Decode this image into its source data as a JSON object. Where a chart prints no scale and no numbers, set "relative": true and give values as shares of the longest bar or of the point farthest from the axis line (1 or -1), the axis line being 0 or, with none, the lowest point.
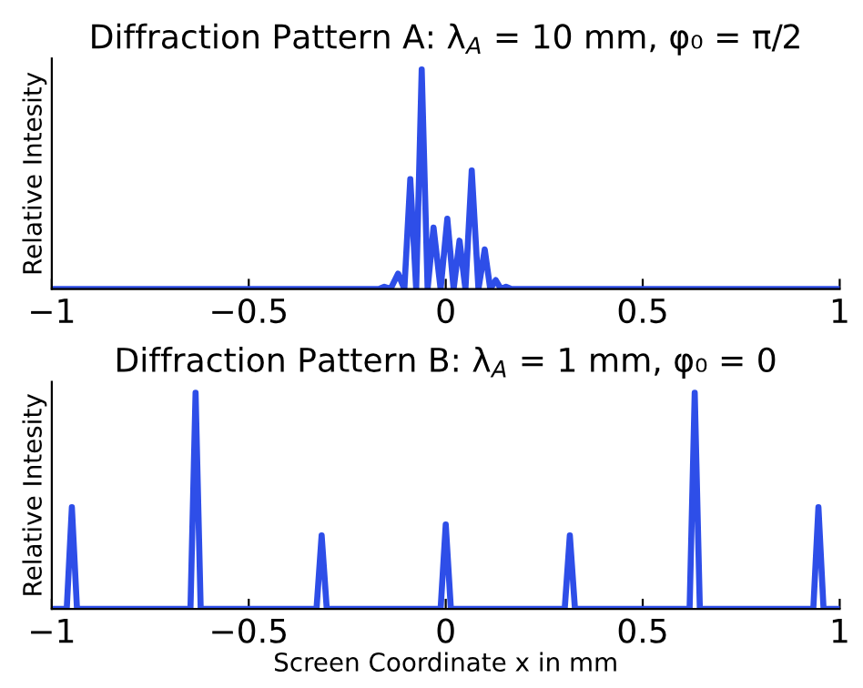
{
  "chart_data": [
    {
      "type": "line",
      "title": "Diffraction Pattern A: λ$_{A}$ = 10 mm, φ₀ = π/2",
      "ylabel": "Relative Intesity",
      "relative": true,
      "xlim": [
        -1,
        1
      ],
      "xticks": [
        -1,
        -0.5,
        0,
        0.5,
        1
      ],
      "grid": false,
      "legend": false,
      "series": [
        {
          "color": "#2e4ee8",
          "x": [
            -1,
            -0.17,
            -0.156,
            -0.14,
            -0.121,
            -0.105,
            -0.09,
            -0.075,
            -0.061,
            -0.046,
            -0.031,
            -0.013,
            0.004,
            0.02,
            0.035,
            0.05,
            0.066,
            0.083,
            0.099,
            0.113,
            0.127,
            0.14,
            0.153,
            0.167,
            1
          ],
          "values": [
            0,
            0,
            0.01,
            0,
            0.07,
            0,
            0.5,
            0,
            1,
            0,
            0.28,
            0,
            0.32,
            0,
            0.22,
            0,
            0.54,
            0,
            0.18,
            0,
            0.04,
            0,
            0.01,
            0,
            0
          ]
        }
      ]
    },
    {
      "type": "line",
      "title": "Diffraction Pattern B: λ$_{A}$ = 1 mm, φ₀ = 0",
      "xlabel": "Screen Coordinate x in mm",
      "ylabel": "Relative Intesity",
      "relative": true,
      "xlim": [
        -1,
        1
      ],
      "xticks": [
        -1,
        -0.5,
        0,
        0.5,
        1
      ],
      "grid": false,
      "legend": false,
      "series": [
        {
          "color": "#2e4ee8",
          "x": [
            -1,
            -0.962,
            -0.949,
            -0.936,
            -0.648,
            -0.635,
            -0.622,
            -0.328,
            -0.315,
            -0.302,
            -0.013,
            0,
            0.013,
            0.302,
            0.315,
            0.328,
            0.619,
            0.632,
            0.645,
            0.933,
            0.946,
            0.959,
            1
          ],
          "values": [
            0,
            0,
            0.47,
            0,
            0,
            1,
            0,
            0,
            0.34,
            0,
            0,
            0.39,
            0,
            0,
            0.34,
            0,
            0,
            1,
            0,
            0,
            0.47,
            0,
            0
          ]
        }
      ]
    }
  ]
}
